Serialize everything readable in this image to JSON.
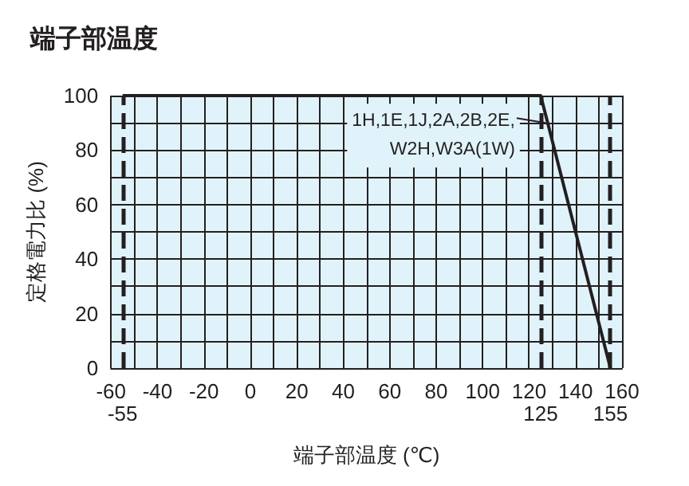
{
  "chart_data": {
    "type": "line",
    "title": "端子部温度",
    "xlabel": "端子部温度 (℃)",
    "ylabel": "定格電力比 (%)",
    "x": [
      -55,
      125,
      155
    ],
    "series": [
      {
        "color": "#231f20",
        "values": [
          100,
          100,
          0
        ]
      }
    ],
    "xlim": [
      -60,
      160
    ],
    "xticks": [
      -60,
      {
        "value": -50,
        "label": null
      },
      -40,
      {
        "value": -30,
        "label": null
      },
      -20,
      {
        "value": -10,
        "label": null
      },
      0,
      {
        "value": 10,
        "label": null
      },
      20,
      {
        "value": 30,
        "label": null
      },
      40,
      {
        "value": 50,
        "label": null
      },
      60,
      {
        "value": 70,
        "label": null
      },
      80,
      {
        "value": 90,
        "label": null
      },
      100,
      {
        "value": 110,
        "label": null
      },
      120,
      {
        "value": 130,
        "label": null
      },
      140,
      {
        "value": 150,
        "label": null
      },
      160
    ],
    "ylim": [
      0,
      100
    ],
    "yticks": [
      0,
      {
        "value": 10,
        "label": null
      },
      20,
      {
        "value": 30,
        "label": null
      },
      40,
      {
        "value": 50,
        "label": null
      },
      60,
      {
        "value": 70,
        "label": null
      },
      80,
      {
        "value": 90,
        "label": null
      },
      100
    ],
    "ref_lines": [
      {
        "axis": "x",
        "value": -55,
        "label": "-55",
        "line_style": "dashed",
        "color": "#231f20"
      },
      {
        "axis": "x",
        "value": 125,
        "label": "125",
        "line_style": "dashed",
        "color": "#231f20"
      },
      {
        "axis": "x",
        "value": 155,
        "label": "155",
        "line_style": "dashed",
        "color": "#231f20"
      }
    ],
    "annotations": [
      {
        "text": "1H,1E,1J,2A,2B,2E,\nW2H,W3A(1W)",
        "x": 127,
        "y": 90
      }
    ],
    "grid": true,
    "marker": "none",
    "line_style": "solid"
  }
}
